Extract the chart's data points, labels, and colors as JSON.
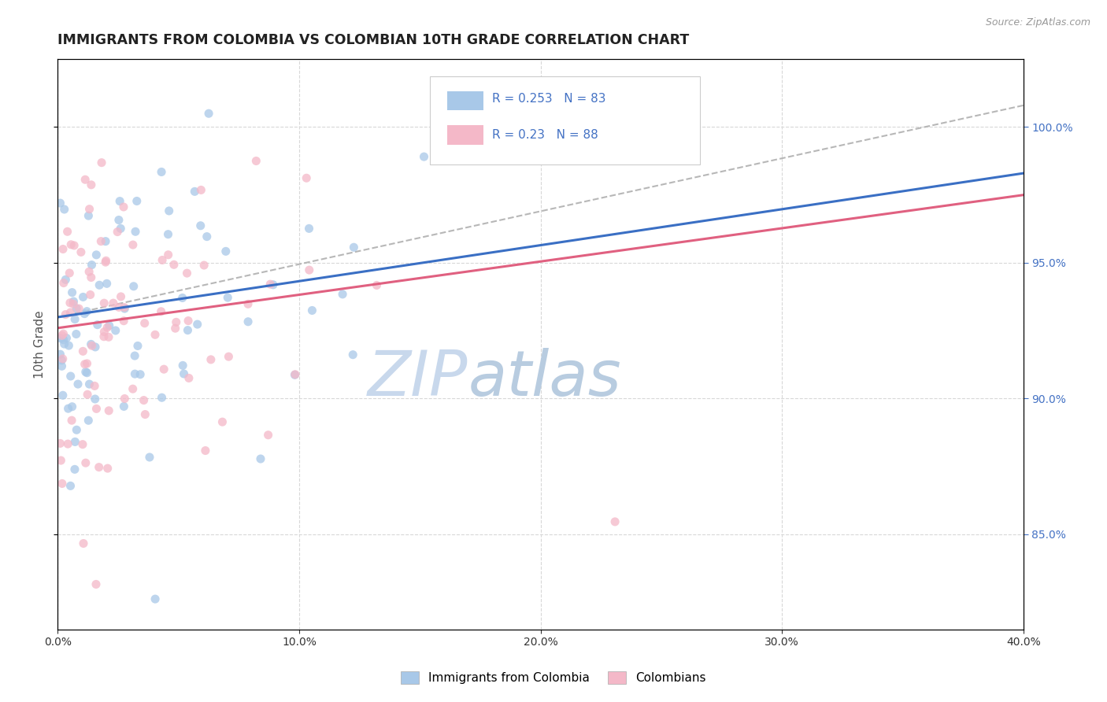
{
  "title": "IMMIGRANTS FROM COLOMBIA VS COLOMBIAN 10TH GRADE CORRELATION CHART",
  "source": "Source: ZipAtlas.com",
  "ylabel": "10th Grade",
  "legend_blue_label": "Immigrants from Colombia",
  "legend_pink_label": "Colombians",
  "R_blue": 0.253,
  "N_blue": 83,
  "R_pink": 0.23,
  "N_pink": 88,
  "blue_color": "#a8c8e8",
  "pink_color": "#f4b8c8",
  "blue_line_color": "#3a6fc4",
  "pink_line_color": "#e06080",
  "dash_line_color": "#b0b0b0",
  "title_color": "#222222",
  "right_tick_color": "#4472c4",
  "watermark_color": "#dce8f5",
  "marker_size": 8,
  "alpha": 0.75,
  "xlim": [
    0.0,
    0.4
  ],
  "ylim": [
    0.815,
    1.025
  ],
  "blue_line_x0": 0.0,
  "blue_line_y0": 0.93,
  "blue_line_x1": 0.4,
  "blue_line_y1": 0.983,
  "pink_line_x0": 0.0,
  "pink_line_y0": 0.926,
  "pink_line_x1": 0.4,
  "pink_line_y1": 0.975,
  "dash_line_x0": 0.0,
  "dash_line_y0": 0.93,
  "dash_line_x1": 0.4,
  "dash_line_y1": 1.008
}
